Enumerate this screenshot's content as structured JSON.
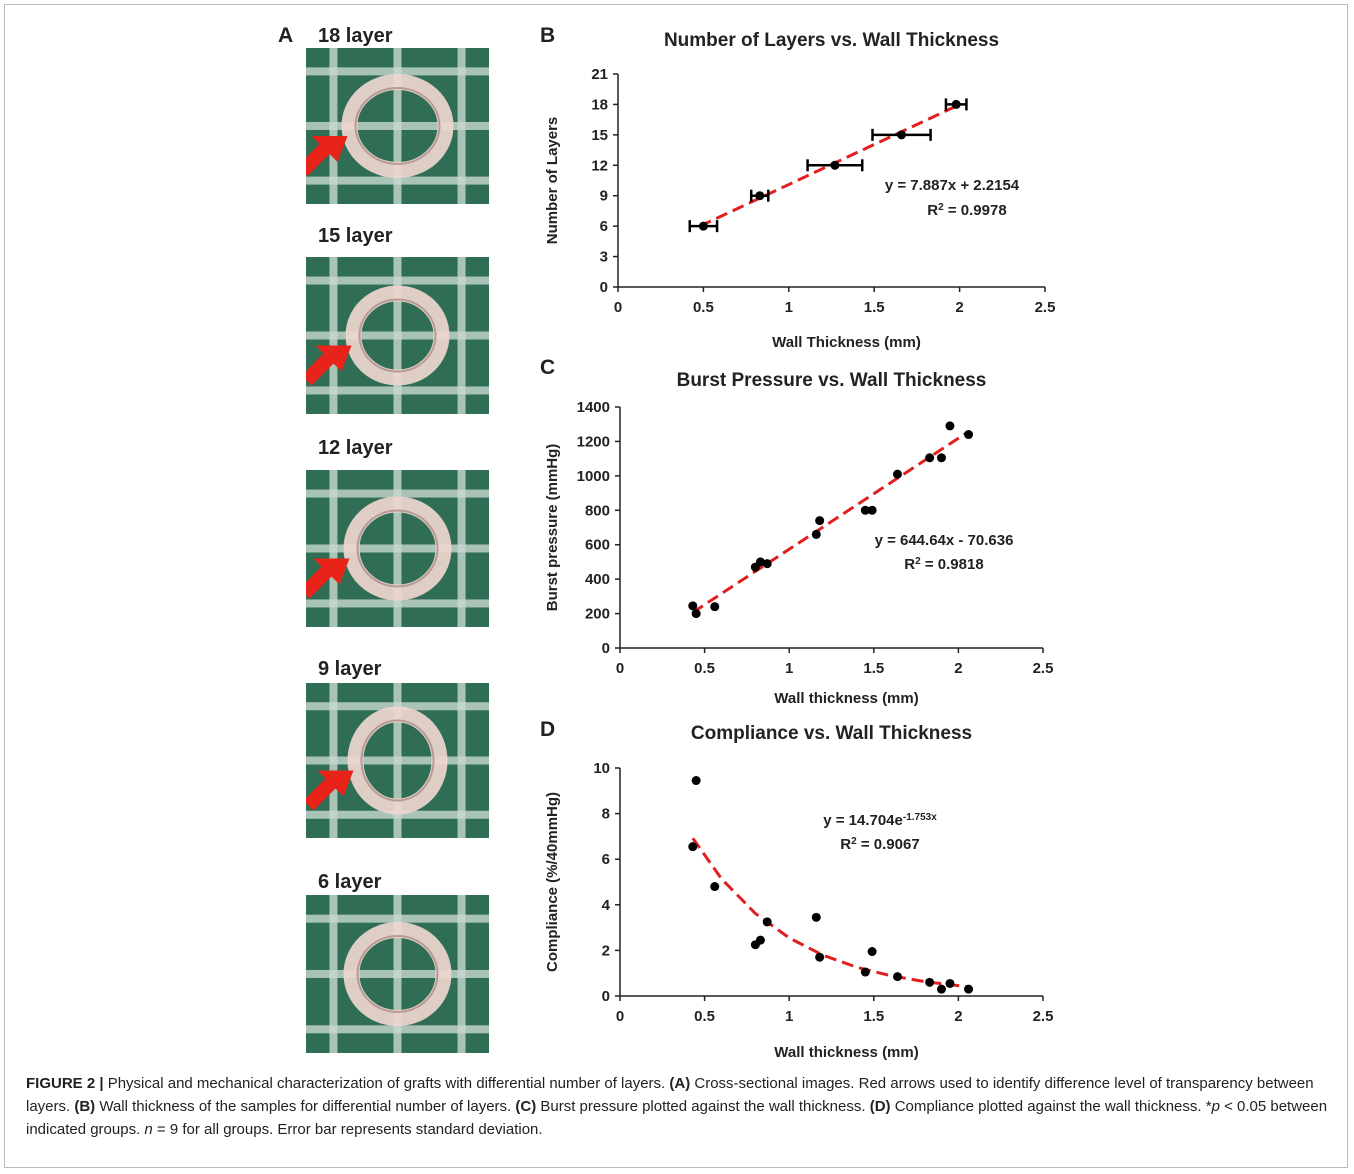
{
  "panel_a": {
    "label": "A",
    "images": [
      {
        "label": "18 layer"
      },
      {
        "label": "15 layer"
      },
      {
        "label": "12 layer"
      },
      {
        "label": "9 layer"
      },
      {
        "label": "6 layer"
      }
    ]
  },
  "chart_data": [
    {
      "type": "scatter",
      "panel_label": "B",
      "title": "Number of Layers vs. Wall Thickness",
      "x_label": "Wall Thickness (mm)",
      "y_label": "Number of Layers",
      "xlim": [
        0,
        2.5
      ],
      "xticks": [
        0,
        0.5,
        1,
        1.5,
        2,
        2.5
      ],
      "ylim": [
        0,
        21
      ],
      "yticks": [
        0,
        3,
        6,
        9,
        12,
        15,
        18,
        21
      ],
      "points": {
        "color": "#000000",
        "x": [
          0.5,
          0.83,
          1.27,
          1.66,
          1.98
        ],
        "y": [
          6,
          9,
          12,
          15,
          18
        ],
        "xerr": [
          0.08,
          0.05,
          0.16,
          0.17,
          0.06
        ]
      },
      "fit": {
        "color": "#e02020",
        "x": [
          0.48,
          2.0
        ],
        "y": [
          6.0,
          17.99
        ]
      },
      "annotation": [
        [
          {
            "text": "y = 7.887x + 2.2154"
          }
        ],
        [
          {
            "text": "R"
          },
          {
            "text": "2",
            "sup": true
          },
          {
            "text": " = 0.9978"
          }
        ]
      ]
    },
    {
      "type": "scatter",
      "panel_label": "C",
      "title": "Burst Pressure vs. Wall Thickness",
      "x_label": "Wall thickness (mm)",
      "y_label": "Burst pressure (mmHg)",
      "xlim": [
        0,
        2.5
      ],
      "xticks": [
        0,
        0.5,
        1,
        1.5,
        2,
        2.5
      ],
      "ylim": [
        0,
        1400
      ],
      "yticks": [
        0,
        200,
        400,
        600,
        800,
        1000,
        1200,
        1400
      ],
      "points": {
        "color": "#000000",
        "x": [
          0.43,
          0.45,
          0.56,
          0.8,
          0.83,
          0.87,
          1.16,
          1.18,
          1.45,
          1.49,
          1.64,
          1.83,
          1.9,
          1.95,
          2.06
        ],
        "y": [
          245,
          200,
          240,
          470,
          500,
          490,
          660,
          740,
          800,
          800,
          1010,
          1105,
          1105,
          1290,
          1240
        ]
      },
      "fit": {
        "color": "#e02020",
        "x": [
          0.43,
          2.05
        ],
        "y": [
          206.6,
          1250.9
        ]
      },
      "annotation": [
        [
          {
            "text": "y = 644.64x - 70.636"
          }
        ],
        [
          {
            "text": "R"
          },
          {
            "text": "2",
            "sup": true
          },
          {
            "text": " = 0.9818"
          }
        ]
      ]
    },
    {
      "type": "scatter",
      "panel_label": "D",
      "title": "Compliance vs. Wall Thickness",
      "x_label": "Wall thickness (mm)",
      "y_label": "Compliance (%/40mmHg)",
      "xlim": [
        0,
        2.5
      ],
      "xticks": [
        0,
        0.5,
        1,
        1.5,
        2,
        2.5
      ],
      "ylim": [
        0,
        10
      ],
      "yticks": [
        0,
        2,
        4,
        6,
        8,
        10
      ],
      "points": {
        "color": "#000000",
        "x": [
          0.43,
          0.45,
          0.56,
          0.8,
          0.83,
          0.87,
          1.16,
          1.18,
          1.45,
          1.49,
          1.64,
          1.83,
          1.9,
          1.95,
          2.06
        ],
        "y": [
          6.55,
          9.45,
          4.8,
          2.25,
          2.45,
          3.25,
          3.45,
          1.7,
          1.05,
          1.95,
          0.85,
          0.6,
          0.3,
          0.55,
          0.3
        ]
      },
      "fit": {
        "color": "#e02020",
        "x": [
          0.43,
          0.6,
          0.8,
          1.0,
          1.2,
          1.4,
          1.6,
          1.8,
          2.06
        ],
        "y": [
          6.92,
          5.14,
          3.62,
          2.55,
          1.79,
          1.26,
          0.89,
          0.63,
          0.4
        ]
      },
      "annotation": [
        [
          {
            "text": "y = 14.704e"
          },
          {
            "text": "-1.753x",
            "sup": true
          }
        ],
        [
          {
            "text": "R"
          },
          {
            "text": "2",
            "sup": true
          },
          {
            "text": " = 0.9067"
          }
        ]
      ]
    }
  ],
  "caption": [
    {
      "text": "FIGURE 2 |",
      "bold": true
    },
    {
      "text": " Physical and mechanical characterization of grafts with differential number of layers. "
    },
    {
      "text": "(A)",
      "bold": true
    },
    {
      "text": " Cross-sectional images. Red arrows used to identify difference level of transparency between layers. "
    },
    {
      "text": "(B)",
      "bold": true
    },
    {
      "text": " Wall thickness of the samples for differential number of layers. "
    },
    {
      "text": "(C)",
      "bold": true
    },
    {
      "text": " Burst pressure plotted against the wall thickness. "
    },
    {
      "text": "(D)",
      "bold": true
    },
    {
      "text": " Compliance plotted against the wall thickness. *"
    },
    {
      "text": "p",
      "italic": true
    },
    {
      "text": " < 0.05 between indicated groups. "
    },
    {
      "text": "n",
      "italic": true
    },
    {
      "text": " = 9 for all groups. Error bar represents standard deviation."
    }
  ]
}
